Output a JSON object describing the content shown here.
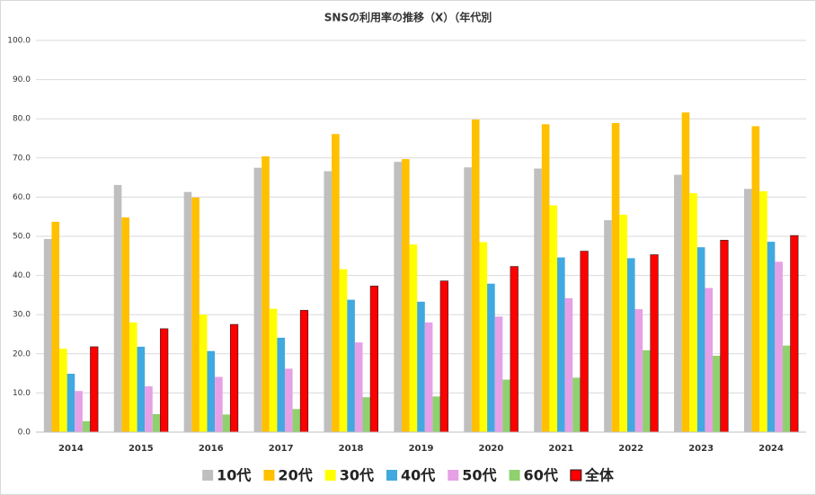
{
  "chart_data": {
    "type": "bar",
    "title": "SNSの利用率の推移（X）（年代別",
    "categories": [
      "2014",
      "2015",
      "2016",
      "2017",
      "2018",
      "2019",
      "2020",
      "2021",
      "2022",
      "2023",
      "2024"
    ],
    "series": [
      {
        "name": "10代",
        "color": "#bfbfbf",
        "values": [
          49.3,
          63.1,
          61.3,
          67.5,
          66.6,
          69.0,
          67.6,
          67.3,
          54.1,
          65.7,
          62.1
        ]
      },
      {
        "name": "20代",
        "color": "#ffc000",
        "values": [
          53.7,
          54.8,
          59.9,
          70.4,
          76.1,
          69.7,
          79.8,
          78.6,
          78.9,
          81.6,
          78.1
        ]
      },
      {
        "name": "30代",
        "color": "#ffff00",
        "values": [
          21.3,
          28.0,
          30.0,
          31.5,
          41.6,
          47.9,
          48.5,
          57.9,
          55.5,
          61.0,
          61.5
        ]
      },
      {
        "name": "40代",
        "color": "#41a9e0",
        "values": [
          14.9,
          21.8,
          20.7,
          24.1,
          33.8,
          33.3,
          37.9,
          44.6,
          44.4,
          47.2,
          48.6
        ]
      },
      {
        "name": "50代",
        "color": "#e6a0e6",
        "values": [
          10.5,
          11.7,
          14.1,
          16.2,
          22.9,
          28.0,
          29.5,
          34.2,
          31.4,
          36.8,
          43.5
        ]
      },
      {
        "name": "60代",
        "color": "#8fd16f",
        "values": [
          2.8,
          4.6,
          4.5,
          5.9,
          8.9,
          9.1,
          13.4,
          13.9,
          20.9,
          19.5,
          22.1
        ]
      },
      {
        "name": "全体",
        "color": "#ff0000",
        "values": [
          21.8,
          26.4,
          27.5,
          31.1,
          37.3,
          38.6,
          42.3,
          46.2,
          45.3,
          49.0,
          50.2
        ]
      }
    ],
    "ylim": [
      0,
      100
    ],
    "yticks": [
      {
        "value": 0,
        "label": "0.0"
      },
      {
        "value": 10,
        "label": "10.0"
      },
      {
        "value": 20,
        "label": "20.0"
      },
      {
        "value": 30,
        "label": "30.0"
      },
      {
        "value": 40,
        "label": "40.0"
      },
      {
        "value": 50,
        "label": "50.0"
      },
      {
        "value": 60,
        "label": "60.0"
      },
      {
        "value": 70,
        "label": "70.0"
      },
      {
        "value": 80,
        "label": "80.0"
      },
      {
        "value": 90,
        "label": "90.0"
      },
      {
        "value": 100,
        "label": "100.0"
      }
    ],
    "grid": true,
    "legend": "bottom"
  }
}
